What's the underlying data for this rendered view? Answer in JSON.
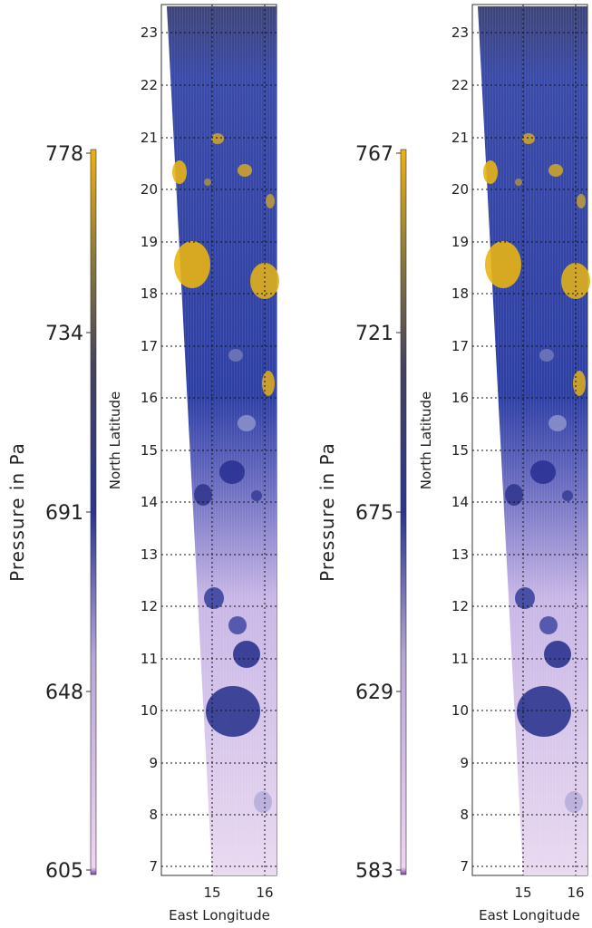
{
  "panels": [
    {
      "id": "left",
      "colorbar": {
        "label": "Pressure in Pa",
        "ticks": [
          "778",
          "734",
          "691",
          "648",
          "605"
        ]
      },
      "y_label": "North Latitude",
      "x_label": "East Longitude",
      "y_ticks": [
        "23",
        "22",
        "21",
        "20",
        "19",
        "18",
        "17",
        "16",
        "15",
        "14",
        "13",
        "12",
        "11",
        "10",
        "9",
        "8",
        "7"
      ],
      "x_ticks": [
        "15",
        "16"
      ]
    },
    {
      "id": "right",
      "colorbar": {
        "label": "Pressure in Pa",
        "ticks": [
          "767",
          "721",
          "675",
          "629",
          "583"
        ]
      },
      "y_label": "North Latitude",
      "x_label": "East Longitude",
      "y_ticks": [
        "23",
        "22",
        "21",
        "20",
        "19",
        "18",
        "17",
        "16",
        "15",
        "14",
        "13",
        "12",
        "11",
        "10",
        "9",
        "8",
        "7"
      ],
      "x_ticks": [
        "15",
        "16"
      ]
    }
  ],
  "colors": {
    "low": "#e8c8ec",
    "mid": "#2a3590",
    "high": "#e8b010",
    "grid": "#111111"
  }
}
